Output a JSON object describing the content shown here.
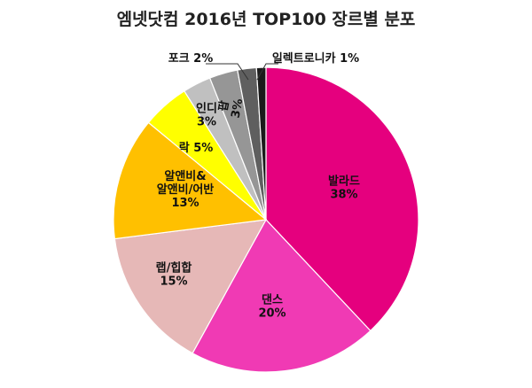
{
  "chart_data": {
    "type": "pie",
    "title": "엠넷닷컴 2016년 TOP100 장르별 분포",
    "start_angle_deg": 0,
    "direction": "clockwise",
    "slices": [
      {
        "name": "발라드",
        "value": 38,
        "value_label": "38%",
        "color": "#E5007E"
      },
      {
        "name": "댄스",
        "value": 20,
        "value_label": "20%",
        "color": "#F03AB4"
      },
      {
        "name": "랩/힙합",
        "value": 15,
        "value_label": "15%",
        "color": "#E6B8B7"
      },
      {
        "name": "알앤비&\n알앤비/어반",
        "value": 13,
        "value_label": "13%",
        "color": "#FFC000"
      },
      {
        "name": "락",
        "value": 5,
        "value_label": "5%",
        "color": "#FFFF00"
      },
      {
        "name": "인디",
        "value": 3,
        "value_label": "3%",
        "color": "#C0C0C0"
      },
      {
        "name": "팝",
        "value": 3,
        "value_label": "3%",
        "color": "#969696"
      },
      {
        "name": "포크",
        "value": 2,
        "value_label": "2%",
        "color": "#5F5F5F"
      },
      {
        "name": "일렉트로니카",
        "value": 1,
        "value_label": "1%",
        "color": "#1A1A1A"
      }
    ]
  }
}
